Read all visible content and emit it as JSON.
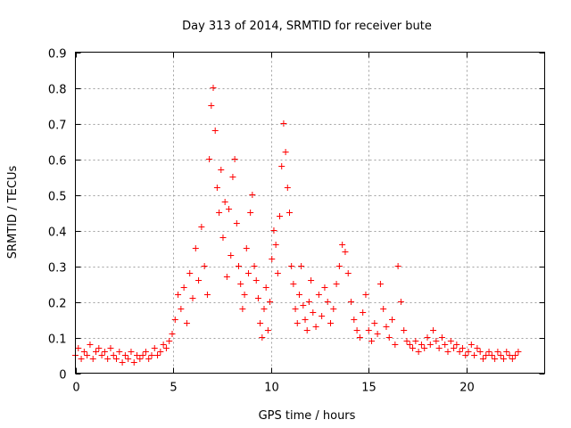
{
  "chart_data": {
    "type": "scatter",
    "title": "Day 313 of 2014, SRMTID for receiver bute",
    "xlabel": "GPS time / hours",
    "ylabel": "SRMTID / TECUs",
    "xlim": [
      0,
      24
    ],
    "ylim": [
      0,
      0.9
    ],
    "xticks": [
      0,
      5,
      10,
      15,
      20
    ],
    "yticks": [
      0,
      0.1,
      0.2,
      0.3,
      0.4,
      0.5,
      0.6,
      0.7,
      0.8,
      0.9
    ],
    "xtick_labels": [
      "0",
      "5",
      "10",
      "15",
      "20"
    ],
    "ytick_labels": [
      "0",
      "0.1",
      "0.2",
      "0.3",
      "0.4",
      "0.5",
      "0.6",
      "0.7",
      "0.8",
      "0.9"
    ],
    "grid": true,
    "marker": "+",
    "color": "#ff0000",
    "series": [
      {
        "name": "SRMTID",
        "x": [
          0.0,
          0.15,
          0.3,
          0.45,
          0.6,
          0.75,
          0.9,
          1.05,
          1.2,
          1.35,
          1.5,
          1.65,
          1.8,
          1.95,
          2.1,
          2.25,
          2.4,
          2.55,
          2.7,
          2.85,
          3.0,
          3.15,
          3.3,
          3.45,
          3.6,
          3.75,
          3.9,
          4.05,
          4.2,
          4.35,
          4.5,
          4.65,
          4.8,
          4.95,
          5.1,
          5.25,
          5.4,
          5.55,
          5.7,
          5.85,
          6.0,
          6.15,
          6.3,
          6.45,
          6.6,
          6.75,
          6.85,
          6.95,
          7.05,
          7.15,
          7.25,
          7.35,
          7.45,
          7.55,
          7.65,
          7.75,
          7.85,
          7.95,
          8.05,
          8.15,
          8.25,
          8.35,
          8.45,
          8.55,
          8.65,
          8.75,
          8.85,
          8.95,
          9.05,
          9.15,
          9.25,
          9.35,
          9.45,
          9.55,
          9.65,
          9.75,
          9.85,
          9.95,
          10.05,
          10.15,
          10.25,
          10.35,
          10.45,
          10.55,
          10.65,
          10.75,
          10.85,
          10.95,
          11.05,
          11.15,
          11.25,
          11.35,
          11.45,
          11.55,
          11.65,
          11.75,
          11.85,
          11.95,
          12.05,
          12.15,
          12.3,
          12.45,
          12.6,
          12.75,
          12.9,
          13.05,
          13.2,
          13.35,
          13.5,
          13.65,
          13.8,
          13.95,
          14.1,
          14.25,
          14.4,
          14.55,
          14.7,
          14.85,
          15.0,
          15.15,
          15.3,
          15.45,
          15.6,
          15.75,
          15.9,
          16.05,
          16.2,
          16.35,
          16.5,
          16.65,
          16.8,
          16.95,
          17.1,
          17.25,
          17.4,
          17.55,
          17.7,
          17.85,
          18.0,
          18.15,
          18.3,
          18.45,
          18.6,
          18.75,
          18.9,
          19.05,
          19.2,
          19.35,
          19.5,
          19.65,
          19.8,
          19.95,
          20.1,
          20.25,
          20.4,
          20.55,
          20.7,
          20.85,
          21.0,
          21.15,
          21.3,
          21.45,
          21.6,
          21.75,
          21.9,
          22.05,
          22.2,
          22.35,
          22.5,
          22.65
        ],
        "y": [
          0.05,
          0.07,
          0.04,
          0.06,
          0.05,
          0.08,
          0.04,
          0.06,
          0.07,
          0.05,
          0.06,
          0.04,
          0.07,
          0.05,
          0.04,
          0.06,
          0.03,
          0.05,
          0.04,
          0.06,
          0.03,
          0.05,
          0.04,
          0.05,
          0.06,
          0.04,
          0.05,
          0.07,
          0.05,
          0.06,
          0.08,
          0.07,
          0.09,
          0.11,
          0.15,
          0.22,
          0.18,
          0.24,
          0.14,
          0.28,
          0.21,
          0.35,
          0.26,
          0.41,
          0.3,
          0.22,
          0.6,
          0.75,
          0.8,
          0.68,
          0.52,
          0.45,
          0.57,
          0.38,
          0.48,
          0.27,
          0.46,
          0.33,
          0.55,
          0.6,
          0.42,
          0.3,
          0.25,
          0.18,
          0.22,
          0.35,
          0.28,
          0.45,
          0.5,
          0.3,
          0.26,
          0.21,
          0.14,
          0.1,
          0.18,
          0.24,
          0.12,
          0.2,
          0.32,
          0.4,
          0.36,
          0.28,
          0.44,
          0.58,
          0.7,
          0.62,
          0.52,
          0.45,
          0.3,
          0.25,
          0.18,
          0.14,
          0.22,
          0.3,
          0.19,
          0.15,
          0.12,
          0.2,
          0.26,
          0.17,
          0.13,
          0.22,
          0.16,
          0.24,
          0.2,
          0.14,
          0.18,
          0.25,
          0.3,
          0.36,
          0.34,
          0.28,
          0.2,
          0.15,
          0.12,
          0.1,
          0.17,
          0.22,
          0.12,
          0.09,
          0.14,
          0.11,
          0.25,
          0.18,
          0.13,
          0.1,
          0.15,
          0.08,
          0.3,
          0.2,
          0.12,
          0.09,
          0.08,
          0.07,
          0.09,
          0.06,
          0.08,
          0.07,
          0.1,
          0.08,
          0.12,
          0.09,
          0.07,
          0.1,
          0.08,
          0.06,
          0.09,
          0.07,
          0.08,
          0.06,
          0.07,
          0.05,
          0.06,
          0.08,
          0.05,
          0.07,
          0.06,
          0.04,
          0.05,
          0.06,
          0.05,
          0.04,
          0.06,
          0.05,
          0.04,
          0.06,
          0.05,
          0.04,
          0.05,
          0.06
        ]
      }
    ]
  }
}
